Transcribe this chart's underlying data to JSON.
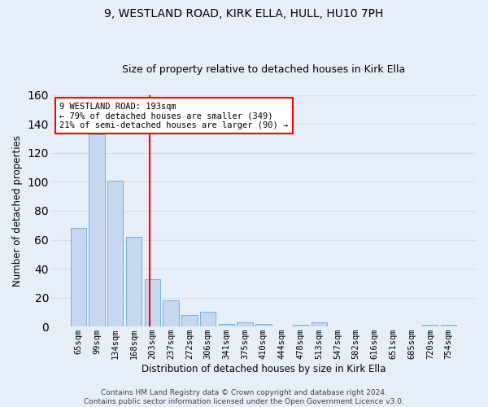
{
  "title1": "9, WESTLAND ROAD, KIRK ELLA, HULL, HU10 7PH",
  "title2": "Size of property relative to detached houses in Kirk Ella",
  "xlabel": "Distribution of detached houses by size in Kirk Ella",
  "ylabel": "Number of detached properties",
  "categories": [
    "65sqm",
    "99sqm",
    "134sqm",
    "168sqm",
    "203sqm",
    "237sqm",
    "272sqm",
    "306sqm",
    "341sqm",
    "375sqm",
    "410sqm",
    "444sqm",
    "478sqm",
    "513sqm",
    "547sqm",
    "582sqm",
    "616sqm",
    "651sqm",
    "685sqm",
    "720sqm",
    "754sqm"
  ],
  "values": [
    68,
    133,
    101,
    62,
    33,
    18,
    8,
    10,
    2,
    3,
    2,
    0,
    1,
    3,
    0,
    0,
    0,
    0,
    0,
    1,
    1
  ],
  "bar_color": "#c5d8f0",
  "bar_edge_color": "#7bafd4",
  "grid_color": "#d4dce8",
  "background_color": "#e8eef8",
  "ylim": [
    0,
    160
  ],
  "yticks": [
    0,
    20,
    40,
    60,
    80,
    100,
    120,
    140,
    160
  ],
  "property_line_x": 3.87,
  "property_line_color": "red",
  "annotation_text": "9 WESTLAND ROAD: 193sqm\n← 79% of detached houses are smaller (349)\n21% of semi-detached houses are larger (90) →",
  "annotation_box_color": "white",
  "annotation_box_edge": "red",
  "footer_text": "Contains HM Land Registry data © Crown copyright and database right 2024.\nContains public sector information licensed under the Open Government Licence v3.0.",
  "title1_fontsize": 10,
  "title2_fontsize": 9,
  "xlabel_fontsize": 8.5,
  "ylabel_fontsize": 8.5,
  "tick_fontsize": 7.5,
  "annotation_fontsize": 7.5,
  "footer_fontsize": 6.5
}
